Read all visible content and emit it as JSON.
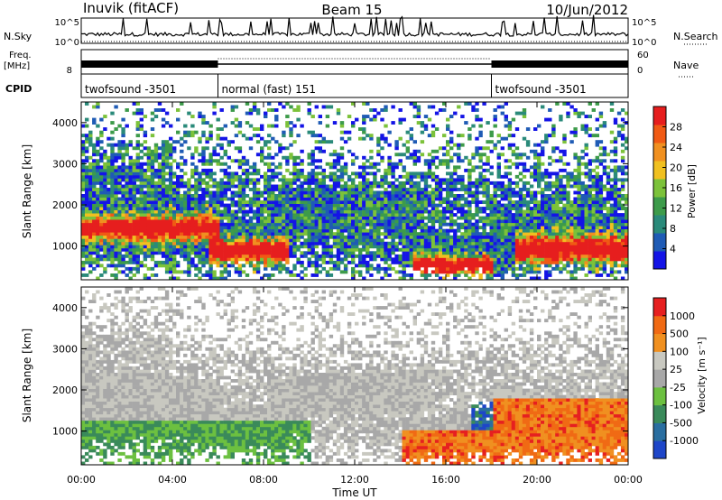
{
  "header": {
    "station": "Inuvik (fitACF)",
    "beam": "Beam 15",
    "date": "10/Jun/2012"
  },
  "ancillary": {
    "nsky_label": "N.Sky",
    "nsky_ticks": [
      "10^5",
      "10^0"
    ],
    "nsearch_label": "N.Search",
    "nsearch_ticks": [
      "10^5",
      "10^0"
    ],
    "freq_label": "Freq.",
    "freq_unit": "[MHz]",
    "freq_ticks": [
      "8"
    ],
    "nave_label": "Nave",
    "nave_ticks": [
      "60",
      "0"
    ],
    "cpid_label": "CPID",
    "cpid_segments": [
      {
        "label": "twofsound -3501",
        "start_hr": 0,
        "end_hr": 6
      },
      {
        "label": "normal (fast) 151",
        "start_hr": 6,
        "end_hr": 18
      },
      {
        "label": "twofsound -3501",
        "start_hr": 18,
        "end_hr": 24
      }
    ]
  },
  "colors": {
    "power_scale": [
      "#1414e6",
      "#1f5bb5",
      "#2a8a7a",
      "#3d9b4a",
      "#7cc23a",
      "#f0c020",
      "#f09020",
      "#f05a14",
      "#e61e1e"
    ],
    "velocity_scale": [
      "#1e46c8",
      "#2a6ea0",
      "#3a8a5a",
      "#6cc040",
      "#a8a8a8",
      "#c8c8c0",
      "#f09020",
      "#f06a14",
      "#e62020"
    ]
  },
  "chart_data": [
    {
      "type": "heatmap",
      "title": "",
      "xlabel": "Time UT",
      "ylabel": "Slant Range [km]",
      "x_tick_labels": [
        "00:00",
        "04:00",
        "08:00",
        "12:00",
        "16:00",
        "20:00",
        "00:00"
      ],
      "x_ticks_hr": [
        0,
        4,
        8,
        12,
        16,
        20,
        24
      ],
      "xlim_hr": [
        0,
        24
      ],
      "y_tick_labels": [
        "1000",
        "2000",
        "3000",
        "4000"
      ],
      "y_ticks": [
        1000,
        2000,
        3000,
        4000
      ],
      "ylim": [
        180,
        4500
      ],
      "colorbar_label": "Power [dB]",
      "colorbar_ticks": [
        "4",
        "8",
        "12",
        "16",
        "20",
        "24",
        "28"
      ],
      "colorbar_range": [
        0,
        30
      ]
    },
    {
      "type": "heatmap",
      "title": "",
      "xlabel": "Time UT",
      "ylabel": "Slant Range [km]",
      "x_tick_labels": [
        "00:00",
        "04:00",
        "08:00",
        "12:00",
        "16:00",
        "20:00",
        "00:00"
      ],
      "x_ticks_hr": [
        0,
        4,
        8,
        12,
        16,
        20,
        24
      ],
      "xlim_hr": [
        0,
        24
      ],
      "y_tick_labels": [
        "1000",
        "2000",
        "3000",
        "4000"
      ],
      "y_ticks": [
        1000,
        2000,
        3000,
        4000
      ],
      "ylim": [
        180,
        4500
      ],
      "colorbar_label": "Velocity [m s⁻¹]",
      "colorbar_ticks": [
        "1000",
        "500",
        "100",
        "25",
        "-25",
        "-100",
        "-500",
        "-1000"
      ],
      "colorbar_range": [
        -1000,
        1000
      ]
    }
  ]
}
